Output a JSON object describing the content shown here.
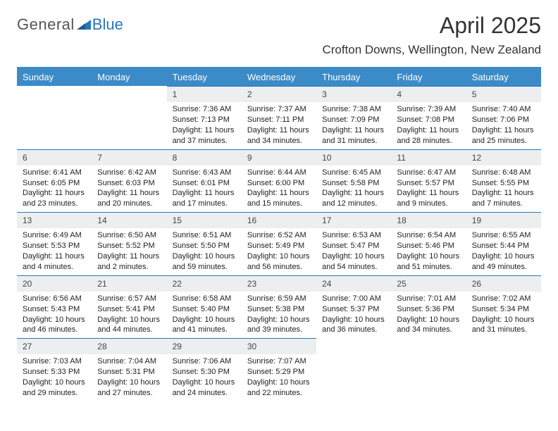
{
  "brand": {
    "part1": "General",
    "part2": "Blue"
  },
  "title": "April 2025",
  "location": "Crofton Downs, Wellington, New Zealand",
  "theme": {
    "header_bg": "#3b8bc9",
    "header_fg": "#ffffff",
    "accent_border": "#2a76b8",
    "daynum_bg": "#eceef0",
    "page_bg": "#ffffff",
    "text_color": "#222222",
    "title_fontsize": 32,
    "location_fontsize": 17,
    "dayhead_fontsize": 13,
    "cell_fontsize": 11
  },
  "day_headers": [
    "Sunday",
    "Monday",
    "Tuesday",
    "Wednesday",
    "Thursday",
    "Friday",
    "Saturday"
  ],
  "weeks": [
    [
      null,
      null,
      {
        "n": "1",
        "sr": "7:36 AM",
        "ss": "7:13 PM",
        "dl": "11 hours and 37 minutes."
      },
      {
        "n": "2",
        "sr": "7:37 AM",
        "ss": "7:11 PM",
        "dl": "11 hours and 34 minutes."
      },
      {
        "n": "3",
        "sr": "7:38 AM",
        "ss": "7:09 PM",
        "dl": "11 hours and 31 minutes."
      },
      {
        "n": "4",
        "sr": "7:39 AM",
        "ss": "7:08 PM",
        "dl": "11 hours and 28 minutes."
      },
      {
        "n": "5",
        "sr": "7:40 AM",
        "ss": "7:06 PM",
        "dl": "11 hours and 25 minutes."
      }
    ],
    [
      {
        "n": "6",
        "sr": "6:41 AM",
        "ss": "6:05 PM",
        "dl": "11 hours and 23 minutes."
      },
      {
        "n": "7",
        "sr": "6:42 AM",
        "ss": "6:03 PM",
        "dl": "11 hours and 20 minutes."
      },
      {
        "n": "8",
        "sr": "6:43 AM",
        "ss": "6:01 PM",
        "dl": "11 hours and 17 minutes."
      },
      {
        "n": "9",
        "sr": "6:44 AM",
        "ss": "6:00 PM",
        "dl": "11 hours and 15 minutes."
      },
      {
        "n": "10",
        "sr": "6:45 AM",
        "ss": "5:58 PM",
        "dl": "11 hours and 12 minutes."
      },
      {
        "n": "11",
        "sr": "6:47 AM",
        "ss": "5:57 PM",
        "dl": "11 hours and 9 minutes."
      },
      {
        "n": "12",
        "sr": "6:48 AM",
        "ss": "5:55 PM",
        "dl": "11 hours and 7 minutes."
      }
    ],
    [
      {
        "n": "13",
        "sr": "6:49 AM",
        "ss": "5:53 PM",
        "dl": "11 hours and 4 minutes."
      },
      {
        "n": "14",
        "sr": "6:50 AM",
        "ss": "5:52 PM",
        "dl": "11 hours and 2 minutes."
      },
      {
        "n": "15",
        "sr": "6:51 AM",
        "ss": "5:50 PM",
        "dl": "10 hours and 59 minutes."
      },
      {
        "n": "16",
        "sr": "6:52 AM",
        "ss": "5:49 PM",
        "dl": "10 hours and 56 minutes."
      },
      {
        "n": "17",
        "sr": "6:53 AM",
        "ss": "5:47 PM",
        "dl": "10 hours and 54 minutes."
      },
      {
        "n": "18",
        "sr": "6:54 AM",
        "ss": "5:46 PM",
        "dl": "10 hours and 51 minutes."
      },
      {
        "n": "19",
        "sr": "6:55 AM",
        "ss": "5:44 PM",
        "dl": "10 hours and 49 minutes."
      }
    ],
    [
      {
        "n": "20",
        "sr": "6:56 AM",
        "ss": "5:43 PM",
        "dl": "10 hours and 46 minutes."
      },
      {
        "n": "21",
        "sr": "6:57 AM",
        "ss": "5:41 PM",
        "dl": "10 hours and 44 minutes."
      },
      {
        "n": "22",
        "sr": "6:58 AM",
        "ss": "5:40 PM",
        "dl": "10 hours and 41 minutes."
      },
      {
        "n": "23",
        "sr": "6:59 AM",
        "ss": "5:38 PM",
        "dl": "10 hours and 39 minutes."
      },
      {
        "n": "24",
        "sr": "7:00 AM",
        "ss": "5:37 PM",
        "dl": "10 hours and 36 minutes."
      },
      {
        "n": "25",
        "sr": "7:01 AM",
        "ss": "5:36 PM",
        "dl": "10 hours and 34 minutes."
      },
      {
        "n": "26",
        "sr": "7:02 AM",
        "ss": "5:34 PM",
        "dl": "10 hours and 31 minutes."
      }
    ],
    [
      {
        "n": "27",
        "sr": "7:03 AM",
        "ss": "5:33 PM",
        "dl": "10 hours and 29 minutes."
      },
      {
        "n": "28",
        "sr": "7:04 AM",
        "ss": "5:31 PM",
        "dl": "10 hours and 27 minutes."
      },
      {
        "n": "29",
        "sr": "7:06 AM",
        "ss": "5:30 PM",
        "dl": "10 hours and 24 minutes."
      },
      {
        "n": "30",
        "sr": "7:07 AM",
        "ss": "5:29 PM",
        "dl": "10 hours and 22 minutes."
      },
      null,
      null,
      null
    ]
  ],
  "labels": {
    "sunrise": "Sunrise: ",
    "sunset": "Sunset: ",
    "daylight": "Daylight: "
  }
}
